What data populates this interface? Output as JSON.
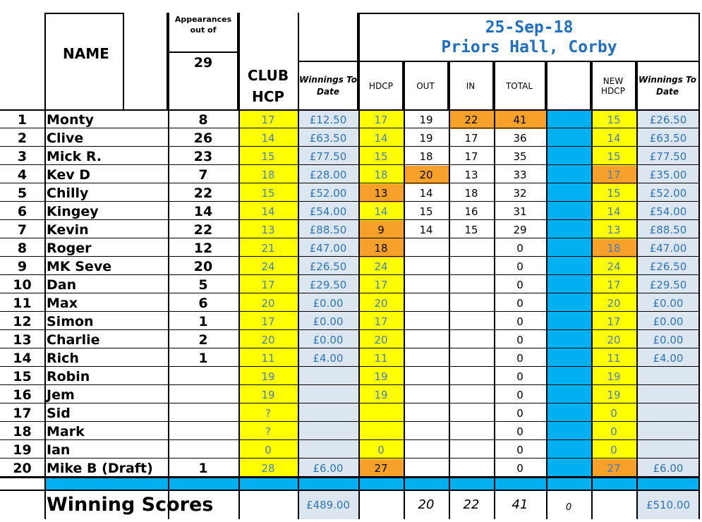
{
  "header": {
    "name_label": "NAME",
    "appearances_label": "Appearances out of",
    "appearances_total": "29",
    "club_hcp_label": "CLUB HCP",
    "winnings_label": "Winnings To Date",
    "event_date": "25-Sep-18",
    "event_venue": "Priors Hall, Corby",
    "hdcp_label": "HDCP",
    "out_label": "OUT",
    "in_label": "IN",
    "total_label": "TOTAL",
    "new_hdcp_label": "NEW HDCP",
    "new_winnings_label": "Winnings To Date"
  },
  "rows": [
    {
      "pos": "1",
      "name": "Monty",
      "app": "8",
      "club": "17",
      "win": "£12.50",
      "hdcp": "17",
      "out": "19",
      "in": "22",
      "total": "41",
      "new": "15",
      "newwin": "£26.50"
    },
    {
      "pos": "2",
      "name": "Clive",
      "app": "26",
      "club": "14",
      "win": "£63.50",
      "hdcp": "14",
      "out": "19",
      "in": "17",
      "total": "36",
      "new": "14",
      "newwin": "£63.50"
    },
    {
      "pos": "3",
      "name": "Mick R.",
      "app": "23",
      "club": "15",
      "win": "£77.50",
      "hdcp": "15",
      "out": "18",
      "in": "17",
      "total": "35",
      "new": "15",
      "newwin": "£77.50"
    },
    {
      "pos": "4",
      "name": "Kev D",
      "app": "7",
      "club": "18",
      "win": "£28.00",
      "hdcp": "18",
      "out": "20",
      "in": "13",
      "total": "33",
      "new": "17",
      "newwin": "£35.00"
    },
    {
      "pos": "5",
      "name": "Chilly",
      "app": "22",
      "club": "15",
      "win": "£52.00",
      "hdcp": "13",
      "out": "14",
      "in": "18",
      "total": "32",
      "new": "15",
      "newwin": "£52.00"
    },
    {
      "pos": "6",
      "name": "Kingey",
      "app": "14",
      "club": "14",
      "win": "£54.00",
      "hdcp": "14",
      "out": "15",
      "in": "16",
      "total": "31",
      "new": "14",
      "newwin": "£54.00"
    },
    {
      "pos": "7",
      "name": "Kevin",
      "app": "22",
      "club": "13",
      "win": "£88.50",
      "hdcp": "9",
      "out": "14",
      "in": "15",
      "total": "29",
      "new": "13",
      "newwin": "£88.50"
    },
    {
      "pos": "8",
      "name": "Roger",
      "app": "12",
      "club": "21",
      "win": "£47.00",
      "hdcp": "18",
      "out": "",
      "in": "",
      "total": "0",
      "new": "18",
      "newwin": "£47.00"
    },
    {
      "pos": "9",
      "name": "MK Seve",
      "app": "20",
      "club": "24",
      "win": "£26.50",
      "hdcp": "24",
      "out": "",
      "in": "",
      "total": "0",
      "new": "24",
      "newwin": "£26.50"
    },
    {
      "pos": "10",
      "name": "Dan",
      "app": "5",
      "club": "17",
      "win": "£29.50",
      "hdcp": "17",
      "out": "",
      "in": "",
      "total": "0",
      "new": "17",
      "newwin": "£29.50"
    },
    {
      "pos": "11",
      "name": "Max",
      "app": "6",
      "club": "20",
      "win": "£0.00",
      "hdcp": "20",
      "out": "",
      "in": "",
      "total": "0",
      "new": "20",
      "newwin": "£0.00"
    },
    {
      "pos": "12",
      "name": "Simon",
      "app": "1",
      "club": "17",
      "win": "£0.00",
      "hdcp": "17",
      "out": "",
      "in": "",
      "total": "0",
      "new": "17",
      "newwin": "£0.00"
    },
    {
      "pos": "13",
      "name": "Charlie",
      "app": "2",
      "club": "20",
      "win": "£0.00",
      "hdcp": "20",
      "out": "",
      "in": "",
      "total": "0",
      "new": "20",
      "newwin": "£0.00"
    },
    {
      "pos": "14",
      "name": "Rich",
      "app": "1",
      "club": "11",
      "win": "£4.00",
      "hdcp": "11",
      "out": "",
      "in": "",
      "total": "0",
      "new": "11",
      "newwin": "£4.00"
    },
    {
      "pos": "15",
      "name": "Robin",
      "app": "",
      "club": "19",
      "win": "",
      "hdcp": "19",
      "out": "",
      "in": "",
      "total": "0",
      "new": "19",
      "newwin": ""
    },
    {
      "pos": "16",
      "name": "Jem",
      "app": "",
      "club": "19",
      "win": "",
      "hdcp": "19",
      "out": "",
      "in": "",
      "total": "0",
      "new": "19",
      "newwin": ""
    },
    {
      "pos": "17",
      "name": "Sid",
      "app": "",
      "club": "?",
      "win": "",
      "hdcp": "",
      "out": "",
      "in": "",
      "total": "0",
      "new": "0",
      "newwin": ""
    },
    {
      "pos": "18",
      "name": "Mark",
      "app": "",
      "club": "?",
      "win": "",
      "hdcp": "",
      "out": "",
      "in": "",
      "total": "0",
      "new": "0",
      "newwin": ""
    },
    {
      "pos": "19",
      "name": "Ian",
      "app": "",
      "club": "0",
      "win": "",
      "hdcp": "0",
      "out": "",
      "in": "",
      "total": "0",
      "new": "0",
      "newwin": ""
    },
    {
      "pos": "20",
      "name": "Mike B (Draft)",
      "app": "1",
      "club": "28",
      "win": "£6.00",
      "hdcp": "27",
      "out": "",
      "in": "",
      "total": "0",
      "new": "27",
      "newwin": "£6.00"
    }
  ],
  "highlights": {
    "orange_hdcp_rows": [
      4,
      6,
      7,
      19
    ],
    "orange_out_rows": [
      3
    ],
    "orange_in_rows": [
      0
    ],
    "orange_total_rows": [
      0
    ],
    "orange_new_rows": [
      3,
      7,
      19
    ],
    "colors": {
      "yellow": "#ffff00",
      "orange": "#f7a12a",
      "cyan": "#00b0f0",
      "pale_blue": "#dce6f1",
      "value_blue": "#2e75b6"
    }
  },
  "footer": {
    "label": "Winning Scores",
    "winnings_total": "£489.00",
    "out": "20",
    "in": "22",
    "total": "41",
    "extra": "0",
    "new_winnings_total": "£510.00"
  }
}
